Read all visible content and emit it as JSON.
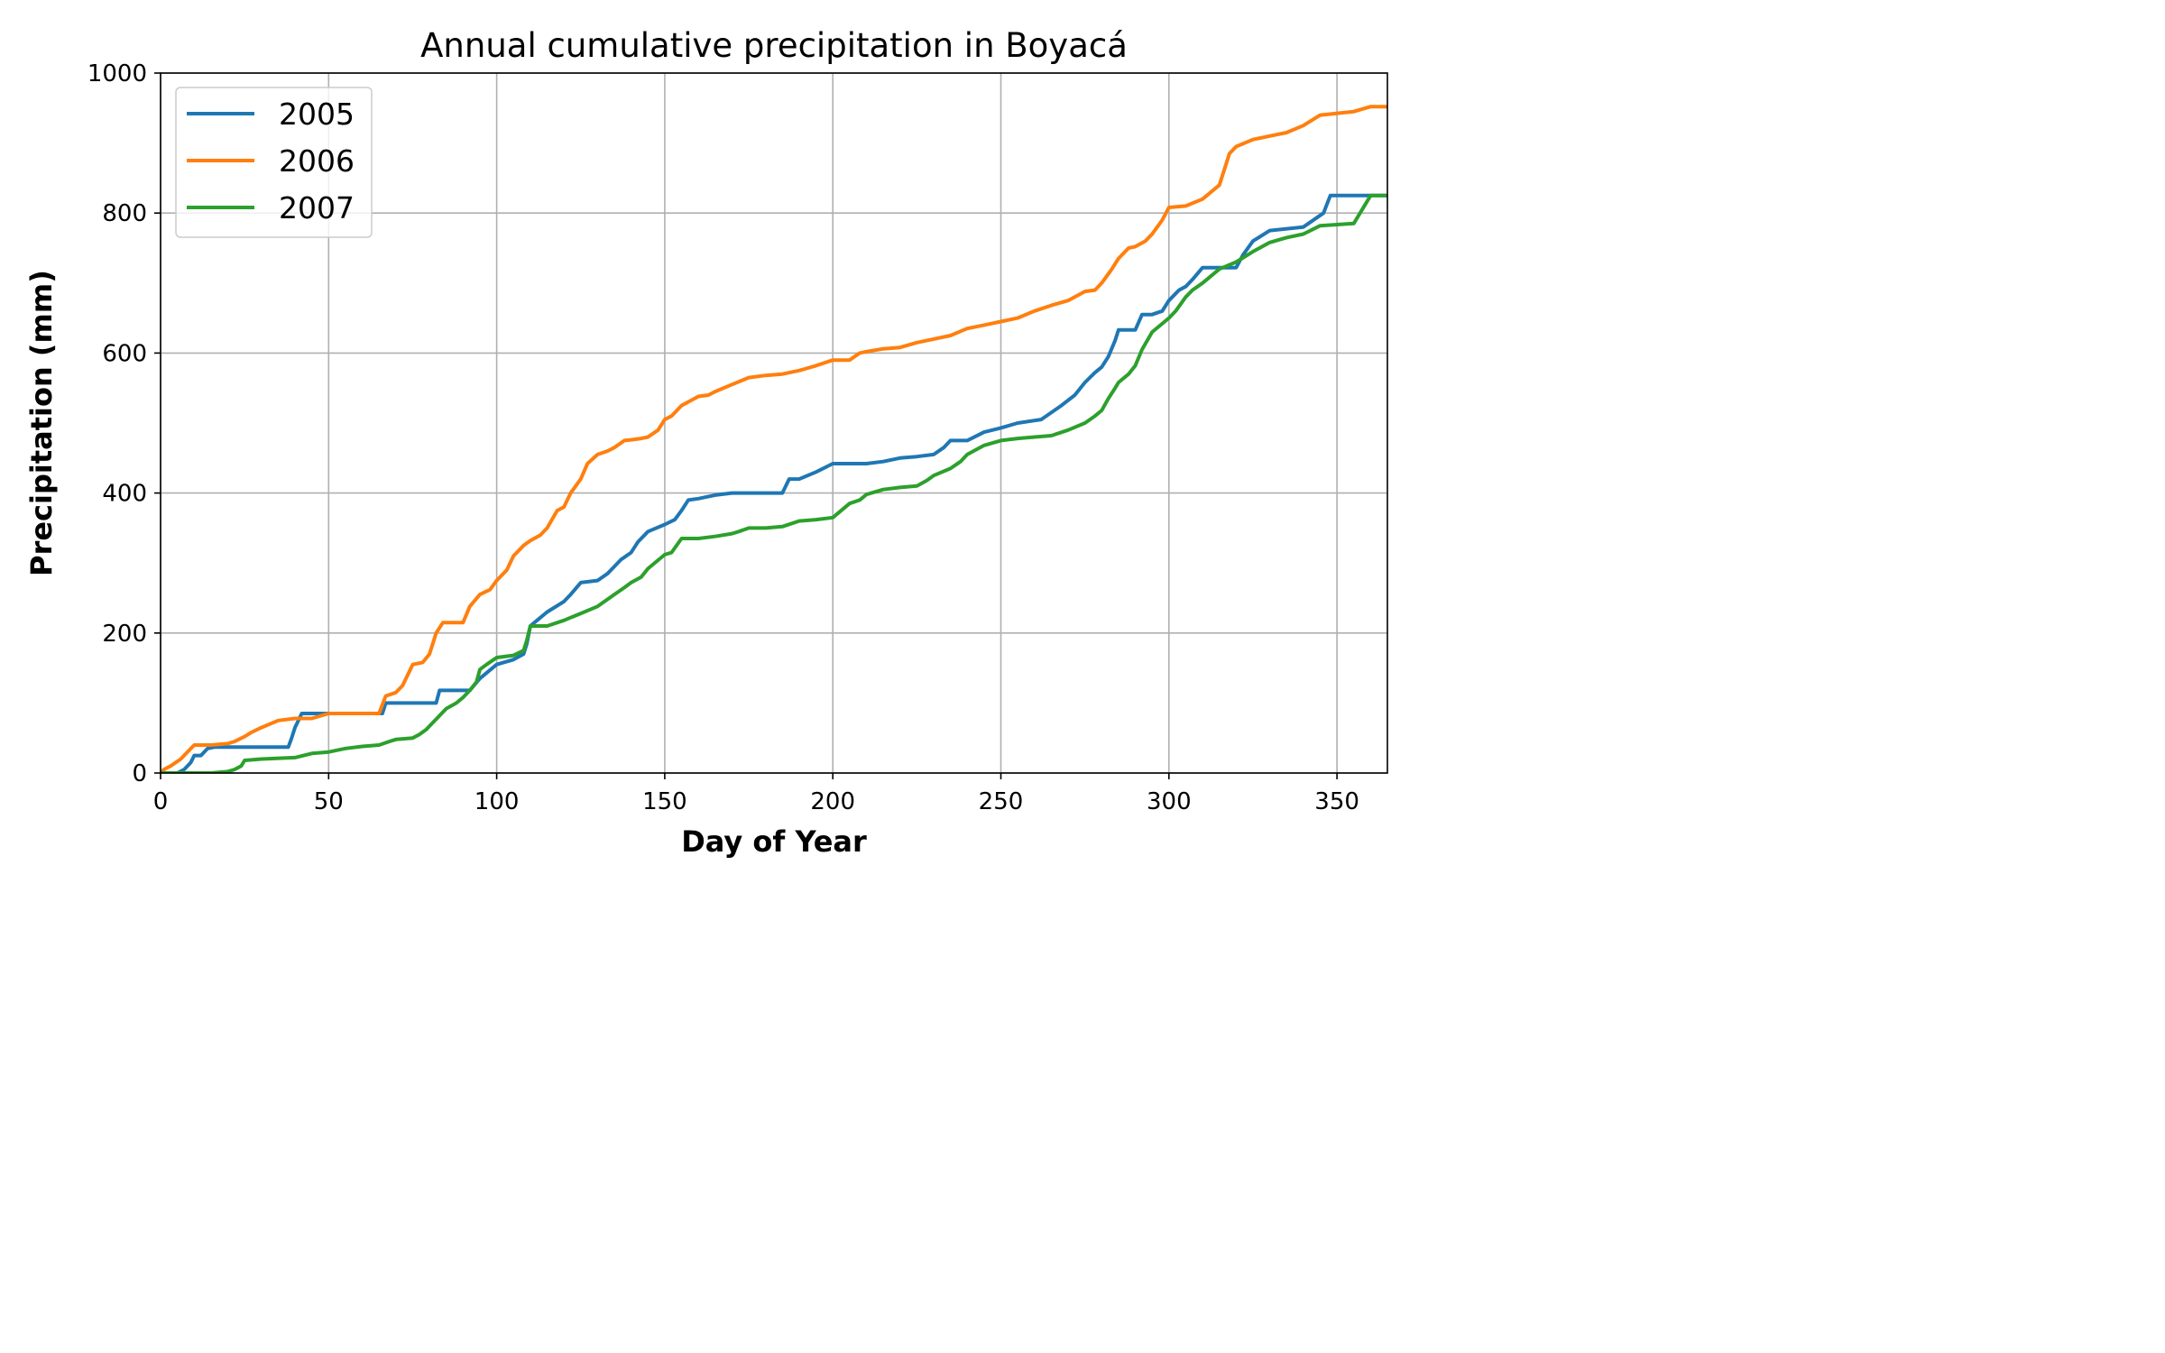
{
  "chart_data": {
    "type": "line",
    "title": "Annual cumulative precipitation in Boyacá",
    "xlabel": "Day of Year",
    "ylabel": "Precipitation (mm)",
    "xlim": [
      0,
      365
    ],
    "ylim": [
      0,
      1000
    ],
    "xticks": [
      0,
      50,
      100,
      150,
      200,
      250,
      300,
      350
    ],
    "yticks": [
      0,
      200,
      400,
      600,
      800,
      1000
    ],
    "xtick_labels": [
      "0",
      "50",
      "100",
      "150",
      "200",
      "250",
      "300",
      "350"
    ],
    "ytick_labels": [
      "0",
      "200",
      "400",
      "600",
      "800",
      "1000"
    ],
    "grid": true,
    "legend_position": "top-left",
    "series": [
      {
        "name": "2005",
        "color": "#1f77b4",
        "x": [
          0,
          5,
          7,
          9,
          10,
          12,
          14,
          16,
          20,
          30,
          38,
          39,
          40,
          41,
          42,
          45,
          50,
          60,
          66,
          67,
          70,
          80,
          82,
          83,
          90,
          92,
          95,
          100,
          105,
          108,
          109,
          110,
          112,
          115,
          120,
          122,
          125,
          130,
          133,
          135,
          137,
          140,
          142,
          145,
          150,
          153,
          155,
          157,
          160,
          165,
          170,
          180,
          185,
          187,
          190,
          195,
          200,
          210,
          215,
          220,
          225,
          230,
          233,
          235,
          240,
          245,
          250,
          255,
          262,
          265,
          268,
          272,
          275,
          278,
          280,
          282,
          284,
          285,
          290,
          292,
          295,
          298,
          300,
          303,
          305,
          307,
          310,
          315,
          320,
          322,
          325,
          330,
          340,
          346,
          348,
          355,
          365
        ],
        "y": [
          0,
          0,
          5,
          15,
          25,
          25,
          35,
          37,
          37,
          37,
          37,
          50,
          65,
          75,
          85,
          85,
          85,
          85,
          85,
          100,
          100,
          100,
          100,
          118,
          118,
          118,
          135,
          155,
          162,
          170,
          185,
          210,
          218,
          230,
          245,
          255,
          272,
          275,
          285,
          295,
          305,
          315,
          330,
          345,
          355,
          362,
          375,
          390,
          392,
          397,
          400,
          400,
          400,
          420,
          420,
          430,
          442,
          442,
          445,
          450,
          452,
          455,
          465,
          475,
          475,
          487,
          493,
          500,
          505,
          515,
          525,
          540,
          558,
          572,
          580,
          595,
          618,
          633,
          633,
          655,
          655,
          660,
          675,
          690,
          695,
          705,
          722,
          722,
          722,
          740,
          760,
          775,
          780,
          800,
          825,
          825,
          825
        ]
      },
      {
        "name": "2006",
        "color": "#ff7f0e",
        "x": [
          0,
          1,
          3,
          6,
          8,
          10,
          15,
          20,
          22,
          25,
          27,
          30,
          35,
          40,
          45,
          50,
          55,
          60,
          65,
          67,
          70,
          72,
          75,
          78,
          80,
          82,
          84,
          86,
          88,
          90,
          92,
          95,
          98,
          100,
          103,
          105,
          108,
          110,
          113,
          115,
          118,
          120,
          122,
          125,
          127,
          130,
          133,
          135,
          138,
          140,
          143,
          145,
          148,
          150,
          152,
          155,
          160,
          163,
          165,
          170,
          175,
          180,
          185,
          190,
          195,
          200,
          205,
          208,
          210,
          215,
          220,
          225,
          230,
          235,
          240,
          245,
          250,
          255,
          260,
          265,
          270,
          275,
          278,
          280,
          283,
          285,
          288,
          290,
          293,
          295,
          298,
          300,
          305,
          310,
          312,
          315,
          317,
          318,
          320,
          325,
          330,
          335,
          340,
          345,
          355,
          360,
          365
        ],
        "y": [
          0,
          5,
          10,
          20,
          30,
          40,
          40,
          42,
          45,
          52,
          58,
          65,
          75,
          78,
          78,
          85,
          85,
          85,
          85,
          110,
          115,
          125,
          155,
          158,
          170,
          200,
          215,
          215,
          215,
          215,
          238,
          255,
          262,
          275,
          290,
          310,
          325,
          332,
          340,
          350,
          375,
          380,
          400,
          420,
          442,
          455,
          460,
          465,
          475,
          476,
          478,
          480,
          490,
          505,
          510,
          525,
          538,
          540,
          545,
          555,
          565,
          568,
          570,
          575,
          582,
          590,
          590,
          600,
          602,
          606,
          608,
          615,
          620,
          625,
          635,
          640,
          645,
          650,
          660,
          668,
          675,
          688,
          690,
          700,
          720,
          735,
          750,
          752,
          760,
          770,
          790,
          808,
          810,
          820,
          828,
          840,
          870,
          885,
          895,
          905,
          910,
          915,
          925,
          940,
          945,
          952,
          952
        ]
      },
      {
        "name": "2007",
        "color": "#2ca02c",
        "x": [
          0,
          15,
          20,
          22,
          24,
          25,
          30,
          40,
          45,
          50,
          55,
          60,
          65,
          68,
          70,
          75,
          77,
          79,
          81,
          83,
          85,
          88,
          90,
          92,
          94,
          95,
          97,
          100,
          105,
          108,
          109,
          110,
          115,
          120,
          122,
          125,
          130,
          135,
          138,
          140,
          143,
          145,
          150,
          152,
          155,
          160,
          165,
          170,
          172,
          175,
          180,
          185,
          190,
          195,
          200,
          205,
          208,
          210,
          215,
          220,
          225,
          228,
          230,
          235,
          238,
          240,
          245,
          250,
          255,
          260,
          265,
          270,
          275,
          278,
          280,
          282,
          284,
          285,
          288,
          290,
          292,
          295,
          300,
          302,
          305,
          307,
          310,
          315,
          320,
          325,
          330,
          335,
          340,
          345,
          355,
          360,
          365
        ],
        "y": [
          0,
          0,
          2,
          5,
          10,
          18,
          20,
          22,
          28,
          30,
          35,
          38,
          40,
          45,
          48,
          50,
          55,
          62,
          72,
          82,
          92,
          100,
          108,
          118,
          130,
          148,
          155,
          165,
          168,
          175,
          190,
          210,
          210,
          218,
          222,
          228,
          238,
          255,
          265,
          272,
          280,
          292,
          312,
          315,
          335,
          335,
          338,
          342,
          345,
          350,
          350,
          352,
          360,
          362,
          365,
          385,
          390,
          398,
          405,
          408,
          410,
          418,
          425,
          435,
          445,
          455,
          468,
          475,
          478,
          480,
          482,
          490,
          500,
          510,
          518,
          535,
          550,
          558,
          570,
          582,
          605,
          630,
          650,
          660,
          680,
          690,
          700,
          720,
          730,
          745,
          758,
          765,
          770,
          782,
          785,
          825,
          825
        ]
      }
    ]
  }
}
